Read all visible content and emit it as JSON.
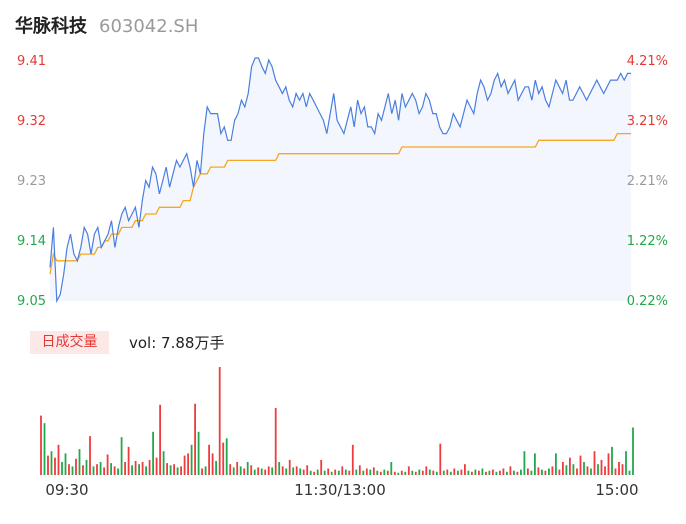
{
  "header": {
    "stock_name": "华脉科技",
    "stock_code": "603042.SH"
  },
  "price_axis": {
    "left_labels": [
      "9.41",
      "9.32",
      "9.23",
      "9.14",
      "9.05"
    ],
    "right_labels": [
      "4.21%",
      "3.21%",
      "2.21%",
      "1.22%",
      "0.22%"
    ]
  },
  "time_axis": {
    "labels": [
      "09:30",
      "11:30/13:00",
      "15:00"
    ]
  },
  "volume": {
    "tag": "日成交量",
    "text": "vol: 7.88万手"
  },
  "colors": {
    "price": "#4a7fe0",
    "avg": "#f5a623",
    "up": "#ef3b3b",
    "down": "#22a84a",
    "area": "#f4f6fd"
  },
  "chart_data": {
    "type": "line",
    "ylim": [
      9.05,
      9.41
    ],
    "series": [
      {
        "values": [
          9.1,
          9.16,
          9.05,
          9.06,
          9.09,
          9.13,
          9.15,
          9.12,
          9.11,
          9.13,
          9.16,
          9.15,
          9.12,
          9.15,
          9.16,
          9.13,
          9.14,
          9.15,
          9.17,
          9.13,
          9.16,
          9.18,
          9.19,
          9.17,
          9.18,
          9.19,
          9.16,
          9.2,
          9.23,
          9.22,
          9.25,
          9.24,
          9.21,
          9.23,
          9.25,
          9.22,
          9.24,
          9.26,
          9.25,
          9.26,
          9.27,
          9.25,
          9.22,
          9.26,
          9.24,
          9.3,
          9.34,
          9.33,
          9.33,
          9.33,
          9.3,
          9.31,
          9.29,
          9.29,
          9.32,
          9.33,
          9.35,
          9.34,
          9.36,
          9.4,
          9.42,
          9.42,
          9.4,
          9.39,
          9.41,
          9.4,
          9.38,
          9.37,
          9.36,
          9.37,
          9.35,
          9.34,
          9.36,
          9.35,
          9.36,
          9.34,
          9.36,
          9.35,
          9.34,
          9.33,
          9.32,
          9.3,
          9.33,
          9.36,
          9.32,
          9.31,
          9.3,
          9.32,
          9.34,
          9.31,
          9.35,
          9.33,
          9.34,
          9.31,
          9.31,
          9.3,
          9.33,
          9.32,
          9.34,
          9.36,
          9.33,
          9.35,
          9.32,
          9.36,
          9.34,
          9.35,
          9.36,
          9.35,
          9.33,
          9.34,
          9.36,
          9.35,
          9.33,
          9.33,
          9.31,
          9.3,
          9.3,
          9.31,
          9.33,
          9.32,
          9.31,
          9.33,
          9.35,
          9.34,
          9.33,
          9.36,
          9.38,
          9.37,
          9.35,
          9.36,
          9.38,
          9.39,
          9.37,
          9.38,
          9.36,
          9.37,
          9.38,
          9.35,
          9.36,
          9.37,
          9.37,
          9.35,
          9.38,
          9.36,
          9.37,
          9.35,
          9.34,
          9.36,
          9.38,
          9.37,
          9.36,
          9.38,
          9.35,
          9.35,
          9.36,
          9.37,
          9.36,
          9.35,
          9.36,
          9.37,
          9.38,
          9.37,
          9.36,
          9.37,
          9.38,
          9.38,
          9.38,
          9.39,
          9.38,
          9.39,
          9.39
        ],
        "color": "#4a7fe0"
      },
      {
        "values": [
          9.09,
          9.12,
          9.11,
          9.11,
          9.11,
          9.11,
          9.11,
          9.11,
          9.11,
          9.12,
          9.12,
          9.12,
          9.12,
          9.12,
          9.13,
          9.13,
          9.14,
          9.14,
          9.15,
          9.15,
          9.15,
          9.16,
          9.16,
          9.16,
          9.16,
          9.17,
          9.17,
          9.17,
          9.18,
          9.18,
          9.18,
          9.18,
          9.19,
          9.19,
          9.19,
          9.19,
          9.19,
          9.19,
          9.19,
          9.2,
          9.2,
          9.2,
          9.22,
          9.23,
          9.24,
          9.24,
          9.24,
          9.25,
          9.25,
          9.25,
          9.25,
          9.25,
          9.26,
          9.26,
          9.26,
          9.26,
          9.26,
          9.26,
          9.26,
          9.26,
          9.26,
          9.26,
          9.26,
          9.26,
          9.26,
          9.26,
          9.26,
          9.27,
          9.27,
          9.27,
          9.27,
          9.27,
          9.27,
          9.27,
          9.27,
          9.27,
          9.27,
          9.27,
          9.27,
          9.27,
          9.27,
          9.27,
          9.27,
          9.27,
          9.27,
          9.27,
          9.27,
          9.27,
          9.27,
          9.27,
          9.27,
          9.27,
          9.27,
          9.27,
          9.27,
          9.27,
          9.27,
          9.27,
          9.27,
          9.27,
          9.27,
          9.27,
          9.27,
          9.28,
          9.28,
          9.28,
          9.28,
          9.28,
          9.28,
          9.28,
          9.28,
          9.28,
          9.28,
          9.28,
          9.28,
          9.28,
          9.28,
          9.28,
          9.28,
          9.28,
          9.28,
          9.28,
          9.28,
          9.28,
          9.28,
          9.28,
          9.28,
          9.28,
          9.28,
          9.28,
          9.28,
          9.28,
          9.28,
          9.28,
          9.28,
          9.28,
          9.28,
          9.28,
          9.28,
          9.28,
          9.28,
          9.28,
          9.28,
          9.29,
          9.29,
          9.29,
          9.29,
          9.29,
          9.29,
          9.29,
          9.29,
          9.29,
          9.29,
          9.29,
          9.29,
          9.29,
          9.29,
          9.29,
          9.29,
          9.29,
          9.29,
          9.29,
          9.29,
          9.29,
          9.29,
          9.29,
          9.3,
          9.3,
          9.3,
          9.3,
          9.3
        ],
        "color": "#f5a623"
      }
    ],
    "volume_bars": [
      {
        "v": 0.55,
        "up": 1
      },
      {
        "v": 0.48,
        "up": 0
      },
      {
        "v": 0.18,
        "up": 1
      },
      {
        "v": 0.22,
        "up": 0
      },
      {
        "v": 0.16,
        "up": 1
      },
      {
        "v": 0.28,
        "up": 1
      },
      {
        "v": 0.12,
        "up": 0
      },
      {
        "v": 0.2,
        "up": 0
      },
      {
        "v": 0.1,
        "up": 1
      },
      {
        "v": 0.08,
        "up": 0
      },
      {
        "v": 0.15,
        "up": 1
      },
      {
        "v": 0.24,
        "up": 0
      },
      {
        "v": 0.09,
        "up": 1
      },
      {
        "v": 0.14,
        "up": 0
      },
      {
        "v": 0.36,
        "up": 1
      },
      {
        "v": 0.08,
        "up": 0
      },
      {
        "v": 0.1,
        "up": 1
      },
      {
        "v": 0.12,
        "up": 0
      },
      {
        "v": 0.07,
        "up": 1
      },
      {
        "v": 0.19,
        "up": 1
      },
      {
        "v": 0.11,
        "up": 0
      },
      {
        "v": 0.08,
        "up": 1
      },
      {
        "v": 0.06,
        "up": 0
      },
      {
        "v": 0.35,
        "up": 0
      },
      {
        "v": 0.12,
        "up": 1
      },
      {
        "v": 0.26,
        "up": 1
      },
      {
        "v": 0.09,
        "up": 0
      },
      {
        "v": 0.13,
        "up": 1
      },
      {
        "v": 0.1,
        "up": 0
      },
      {
        "v": 0.12,
        "up": 1
      },
      {
        "v": 0.08,
        "up": 0
      },
      {
        "v": 0.14,
        "up": 1
      },
      {
        "v": 0.4,
        "up": 0
      },
      {
        "v": 0.16,
        "up": 1
      },
      {
        "v": 0.65,
        "up": 1
      },
      {
        "v": 0.22,
        "up": 0
      },
      {
        "v": 0.11,
        "up": 1
      },
      {
        "v": 0.09,
        "up": 0
      },
      {
        "v": 0.1,
        "up": 1
      },
      {
        "v": 0.07,
        "up": 0
      },
      {
        "v": 0.08,
        "up": 1
      },
      {
        "v": 0.18,
        "up": 1
      },
      {
        "v": 0.2,
        "up": 1
      },
      {
        "v": 0.28,
        "up": 0
      },
      {
        "v": 0.66,
        "up": 1
      },
      {
        "v": 0.4,
        "up": 0
      },
      {
        "v": 0.06,
        "up": 1
      },
      {
        "v": 0.08,
        "up": 0
      },
      {
        "v": 0.28,
        "up": 1
      },
      {
        "v": 0.2,
        "up": 1
      },
      {
        "v": 0.13,
        "up": 0
      },
      {
        "v": 1.0,
        "up": 1
      },
      {
        "v": 0.3,
        "up": 1
      },
      {
        "v": 0.34,
        "up": 0
      },
      {
        "v": 0.1,
        "up": 1
      },
      {
        "v": 0.07,
        "up": 0
      },
      {
        "v": 0.12,
        "up": 1
      },
      {
        "v": 0.08,
        "up": 0
      },
      {
        "v": 0.06,
        "up": 1
      },
      {
        "v": 0.12,
        "up": 0
      },
      {
        "v": 0.09,
        "up": 1
      },
      {
        "v": 0.05,
        "up": 0
      },
      {
        "v": 0.07,
        "up": 1
      },
      {
        "v": 0.06,
        "up": 0
      },
      {
        "v": 0.05,
        "up": 1
      },
      {
        "v": 0.08,
        "up": 1
      },
      {
        "v": 0.07,
        "up": 0
      },
      {
        "v": 0.62,
        "up": 1
      },
      {
        "v": 0.12,
        "up": 0
      },
      {
        "v": 0.08,
        "up": 1
      },
      {
        "v": 0.06,
        "up": 0
      },
      {
        "v": 0.14,
        "up": 1
      },
      {
        "v": 0.07,
        "up": 0
      },
      {
        "v": 0.08,
        "up": 1
      },
      {
        "v": 0.06,
        "up": 0
      },
      {
        "v": 0.05,
        "up": 1
      },
      {
        "v": 0.09,
        "up": 1
      },
      {
        "v": 0.04,
        "up": 0
      },
      {
        "v": 0.03,
        "up": 1
      },
      {
        "v": 0.05,
        "up": 0
      },
      {
        "v": 0.14,
        "up": 1
      },
      {
        "v": 0.04,
        "up": 0
      },
      {
        "v": 0.06,
        "up": 1
      },
      {
        "v": 0.03,
        "up": 0
      },
      {
        "v": 0.05,
        "up": 1
      },
      {
        "v": 0.04,
        "up": 0
      },
      {
        "v": 0.08,
        "up": 1
      },
      {
        "v": 0.05,
        "up": 0
      },
      {
        "v": 0.04,
        "up": 1
      },
      {
        "v": 0.28,
        "up": 1
      },
      {
        "v": 0.05,
        "up": 0
      },
      {
        "v": 0.09,
        "up": 1
      },
      {
        "v": 0.04,
        "up": 0
      },
      {
        "v": 0.06,
        "up": 1
      },
      {
        "v": 0.05,
        "up": 0
      },
      {
        "v": 0.07,
        "up": 1
      },
      {
        "v": 0.04,
        "up": 0
      },
      {
        "v": 0.03,
        "up": 1
      },
      {
        "v": 0.05,
        "up": 0
      },
      {
        "v": 0.04,
        "up": 1
      },
      {
        "v": 0.12,
        "up": 0
      },
      {
        "v": 0.03,
        "up": 1
      },
      {
        "v": 0.02,
        "up": 0
      },
      {
        "v": 0.04,
        "up": 1
      },
      {
        "v": 0.03,
        "up": 0
      },
      {
        "v": 0.08,
        "up": 1
      },
      {
        "v": 0.04,
        "up": 0
      },
      {
        "v": 0.03,
        "up": 1
      },
      {
        "v": 0.05,
        "up": 0
      },
      {
        "v": 0.04,
        "up": 1
      },
      {
        "v": 0.08,
        "up": 1
      },
      {
        "v": 0.05,
        "up": 0
      },
      {
        "v": 0.04,
        "up": 1
      },
      {
        "v": 0.03,
        "up": 0
      },
      {
        "v": 0.29,
        "up": 1
      },
      {
        "v": 0.04,
        "up": 0
      },
      {
        "v": 0.05,
        "up": 1
      },
      {
        "v": 0.03,
        "up": 0
      },
      {
        "v": 0.06,
        "up": 1
      },
      {
        "v": 0.04,
        "up": 0
      },
      {
        "v": 0.05,
        "up": 1
      },
      {
        "v": 0.1,
        "up": 1
      },
      {
        "v": 0.04,
        "up": 0
      },
      {
        "v": 0.03,
        "up": 1
      },
      {
        "v": 0.05,
        "up": 0
      },
      {
        "v": 0.04,
        "up": 1
      },
      {
        "v": 0.06,
        "up": 0
      },
      {
        "v": 0.03,
        "up": 1
      },
      {
        "v": 0.04,
        "up": 0
      },
      {
        "v": 0.05,
        "up": 1
      },
      {
        "v": 0.03,
        "up": 0
      },
      {
        "v": 0.04,
        "up": 1
      },
      {
        "v": 0.06,
        "up": 1
      },
      {
        "v": 0.03,
        "up": 0
      },
      {
        "v": 0.08,
        "up": 1
      },
      {
        "v": 0.04,
        "up": 0
      },
      {
        "v": 0.03,
        "up": 1
      },
      {
        "v": 0.05,
        "up": 0
      },
      {
        "v": 0.22,
        "up": 0
      },
      {
        "v": 0.06,
        "up": 1
      },
      {
        "v": 0.04,
        "up": 0
      },
      {
        "v": 0.2,
        "up": 0
      },
      {
        "v": 0.07,
        "up": 1
      },
      {
        "v": 0.05,
        "up": 0
      },
      {
        "v": 0.04,
        "up": 1
      },
      {
        "v": 0.06,
        "up": 0
      },
      {
        "v": 0.08,
        "up": 1
      },
      {
        "v": 0.2,
        "up": 0
      },
      {
        "v": 0.05,
        "up": 1
      },
      {
        "v": 0.12,
        "up": 1
      },
      {
        "v": 0.09,
        "up": 0
      },
      {
        "v": 0.16,
        "up": 1
      },
      {
        "v": 0.1,
        "up": 0
      },
      {
        "v": 0.06,
        "up": 1
      },
      {
        "v": 0.18,
        "up": 1
      },
      {
        "v": 0.12,
        "up": 0
      },
      {
        "v": 0.08,
        "up": 1
      },
      {
        "v": 0.06,
        "up": 0
      },
      {
        "v": 0.22,
        "up": 1
      },
      {
        "v": 0.1,
        "up": 0
      },
      {
        "v": 0.14,
        "up": 1
      },
      {
        "v": 0.08,
        "up": 1
      },
      {
        "v": 0.2,
        "up": 1
      },
      {
        "v": 0.26,
        "up": 0
      },
      {
        "v": 0.06,
        "up": 1
      },
      {
        "v": 0.12,
        "up": 1
      },
      {
        "v": 0.1,
        "up": 1
      },
      {
        "v": 0.22,
        "up": 0
      },
      {
        "v": 0.04,
        "up": 0
      },
      {
        "v": 0.44,
        "up": 0
      }
    ]
  }
}
